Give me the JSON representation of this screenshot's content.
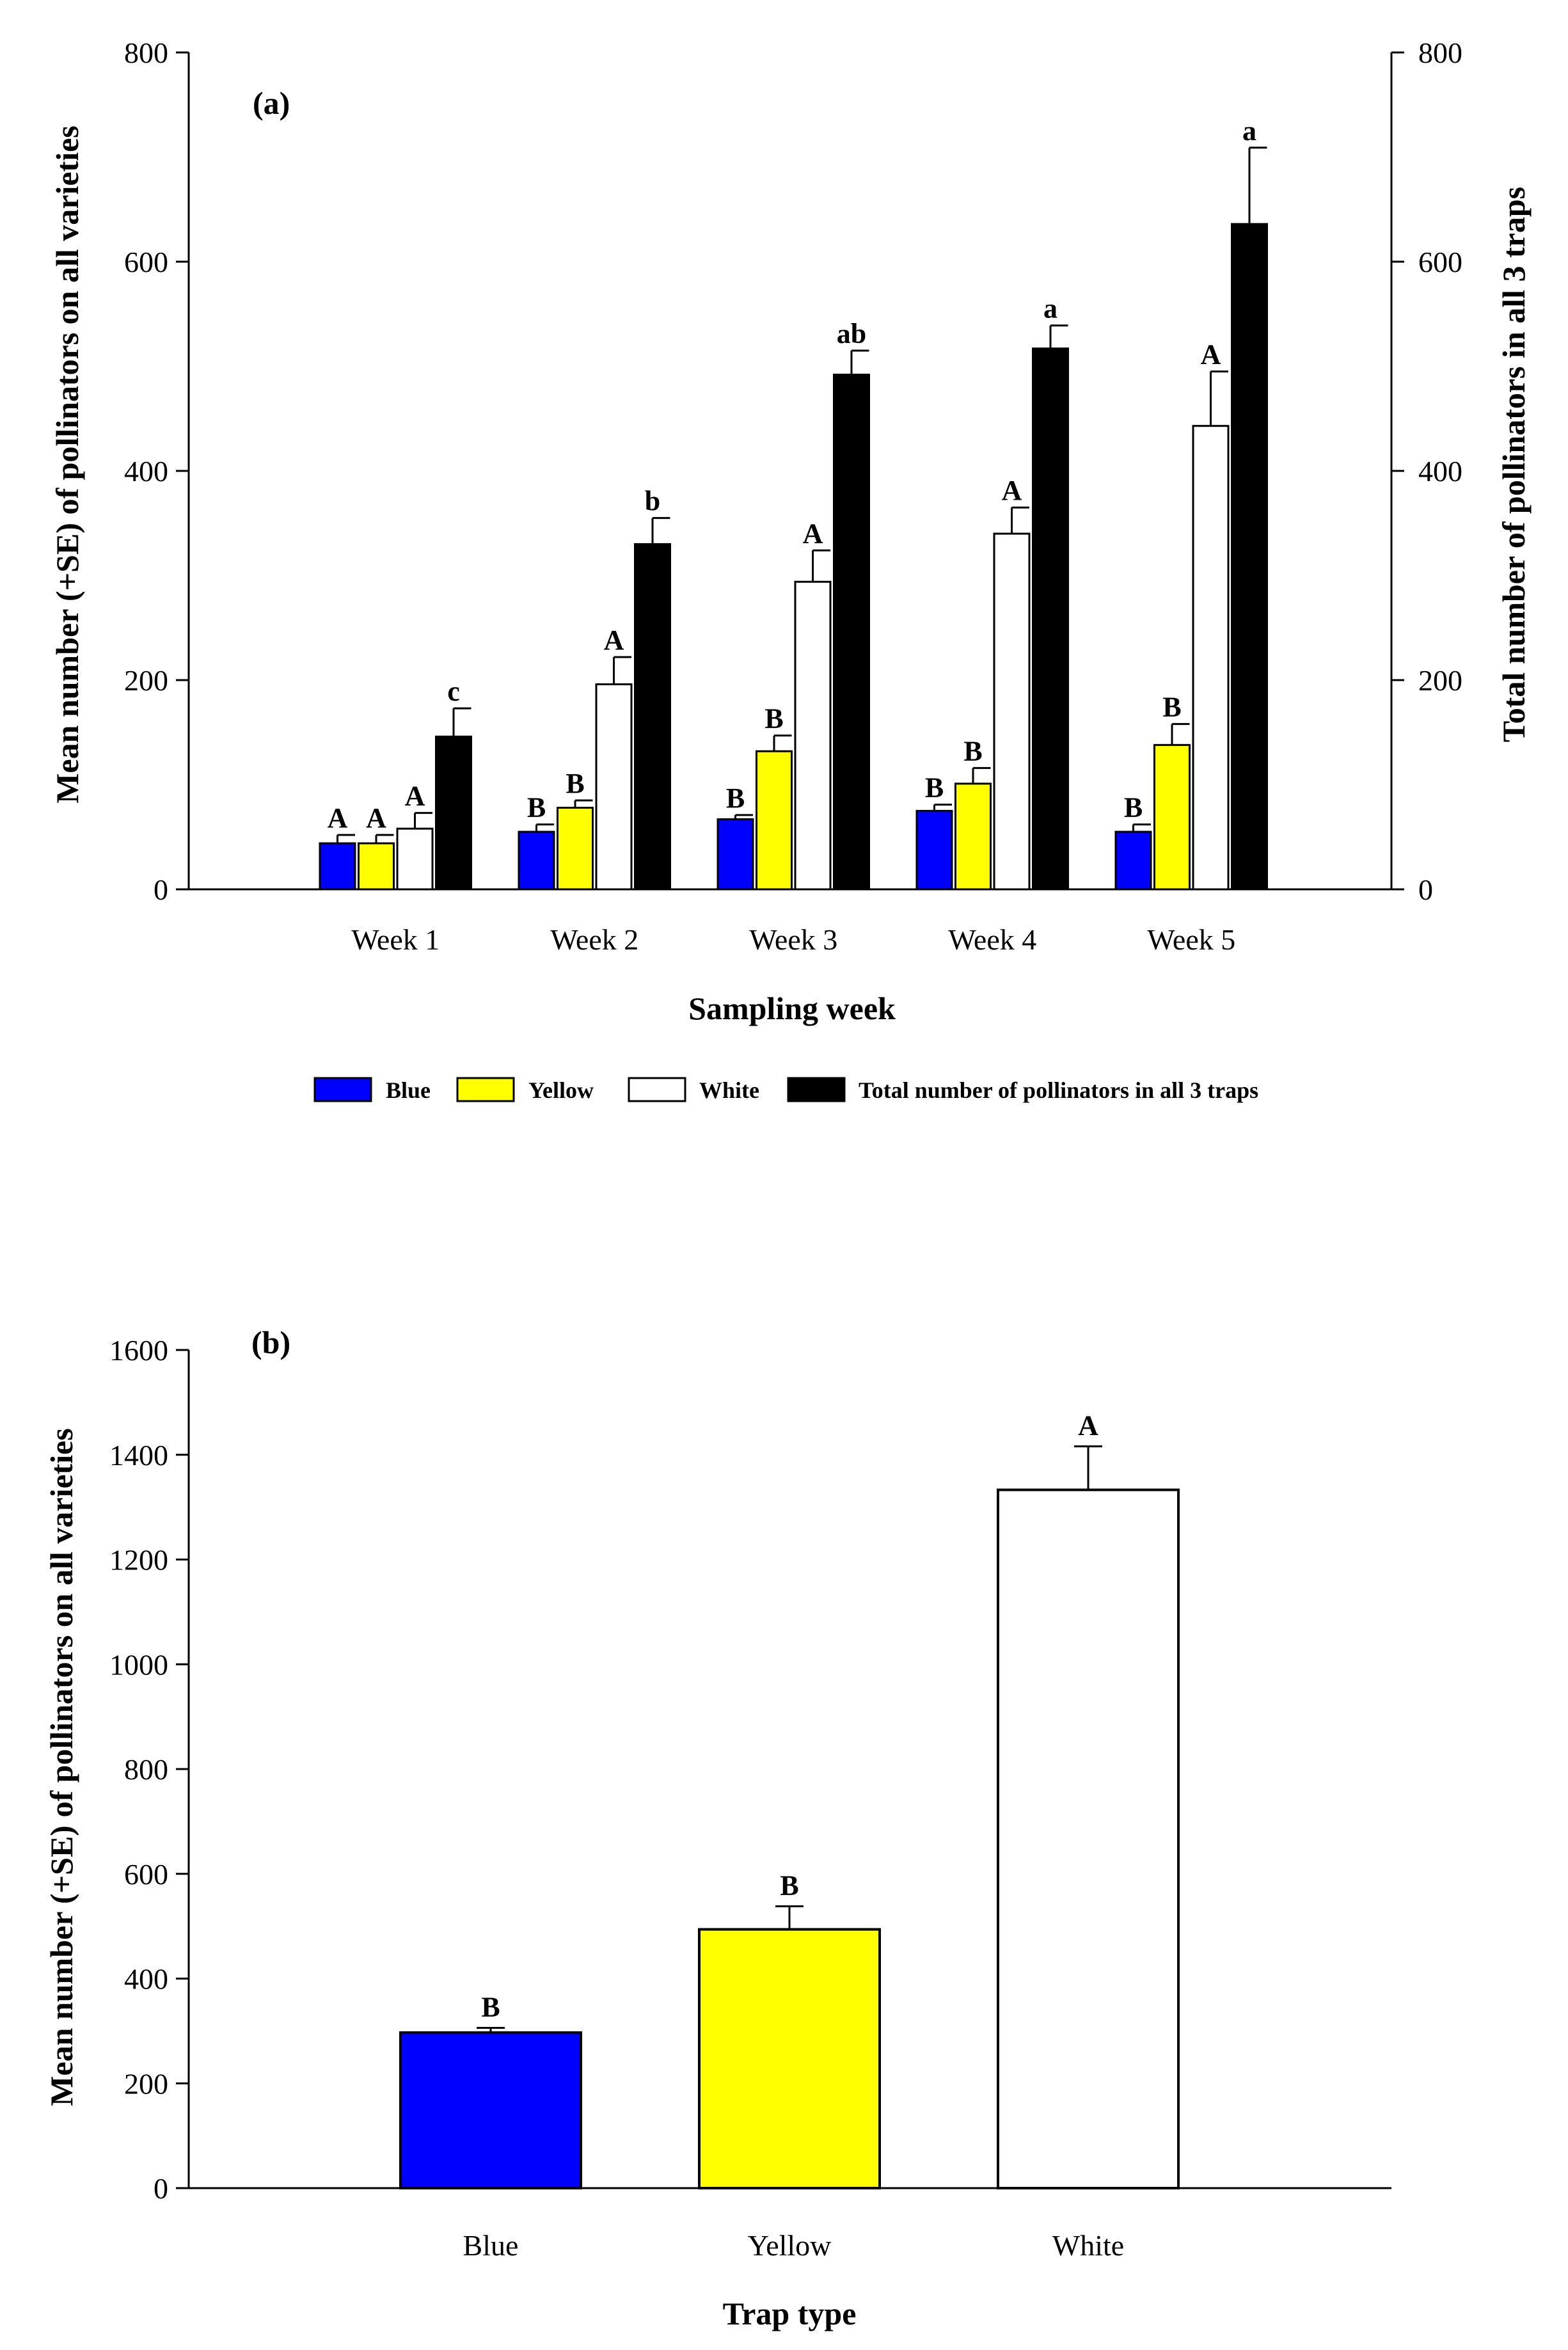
{
  "chart_data": [
    {
      "type": "bar",
      "panel_label": "(a)",
      "xlabel": "Sampling week",
      "ylabel": "Mean number (+SE) of pollinators on all varieties",
      "y2label": "Total number of pollinators in all 3 traps",
      "ylim": [
        0,
        800
      ],
      "y2lim": [
        0,
        800
      ],
      "yticks": [
        0,
        200,
        400,
        600,
        800
      ],
      "y2ticks": [
        0,
        200,
        400,
        600,
        800
      ],
      "categories": [
        "Week 1",
        "Week 2",
        "Week 3",
        "Week 4",
        "Week 5"
      ],
      "legend_position": "bottom",
      "series": [
        {
          "name": "Blue",
          "color": "#0000ff",
          "axis": "left",
          "values": [
            44,
            55,
            67,
            75,
            55
          ],
          "errors": [
            8,
            7,
            4,
            6,
            7
          ],
          "labels": [
            "A",
            "B",
            "B",
            "B",
            "B"
          ]
        },
        {
          "name": "Yellow",
          "color": "#ffff00",
          "axis": "left",
          "values": [
            44,
            78,
            132,
            101,
            138
          ],
          "errors": [
            8,
            7,
            15,
            15,
            20
          ],
          "labels": [
            "A",
            "B",
            "B",
            "B",
            "B"
          ]
        },
        {
          "name": "White",
          "color": "#ffffff",
          "axis": "left",
          "values": [
            58,
            196,
            294,
            340,
            443
          ],
          "errors": [
            15,
            26,
            30,
            25,
            52
          ],
          "labels": [
            "A",
            "A",
            "A",
            "A",
            "A"
          ]
        },
        {
          "name": "Total number of pollinators in all 3 traps",
          "color": "#000000",
          "axis": "right",
          "values": [
            146,
            330,
            492,
            517,
            636
          ],
          "errors": [
            27,
            25,
            23,
            22,
            73
          ],
          "labels": [
            "c",
            "b",
            "ab",
            "a",
            "a"
          ]
        }
      ]
    },
    {
      "type": "bar",
      "panel_label": "(b)",
      "xlabel": "Trap type",
      "ylabel": "Mean number (+SE) of pollinators on all varieties",
      "ylim": [
        0,
        1600
      ],
      "yticks": [
        0,
        200,
        400,
        600,
        800,
        1000,
        1200,
        1400,
        1600
      ],
      "categories": [
        "Blue",
        "Yellow",
        "White"
      ],
      "colors": [
        "#0000ff",
        "#ffff00",
        "#ffffff"
      ],
      "values": [
        297,
        494,
        1333
      ],
      "errors": [
        9,
        44,
        83
      ],
      "labels": [
        "B",
        "B",
        "A"
      ]
    }
  ]
}
